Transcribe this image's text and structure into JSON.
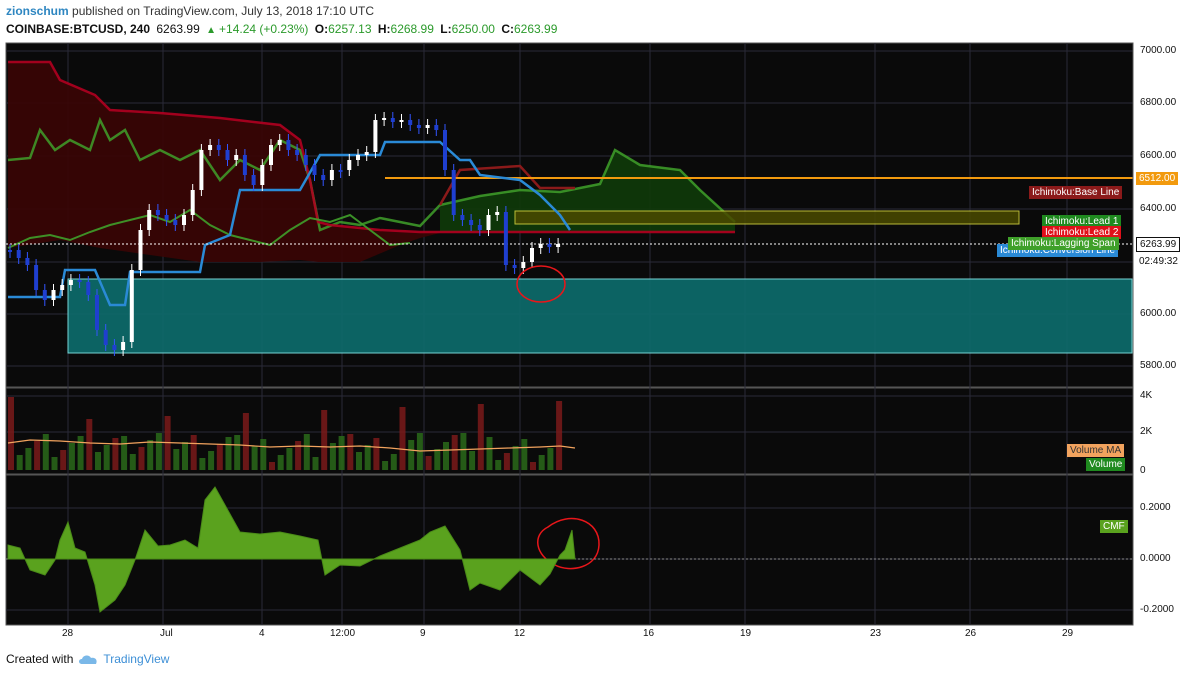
{
  "header": {
    "user": "zionschum",
    "published": "published on TradingView.com, July 13, 2018 17:10 UTC",
    "symbol": "COINBASE:BTCUSD, 240",
    "last": "6263.99",
    "change": "+14.24 (+0.23%)",
    "o_label": "O:",
    "o": "6257.13",
    "h_label": "H:",
    "h": "6268.99",
    "l_label": "L:",
    "l": "6250.00",
    "c_label": "C:",
    "c": "6263.99"
  },
  "price_axis": {
    "ticks": [
      "7000.00",
      "6800.00",
      "6600.00",
      "6400.00",
      "6000.00",
      "5800.00"
    ],
    "price_tag": "6263.99",
    "countdown": "02:49:32",
    "level_tag": "6512.00"
  },
  "indicator_labels": {
    "base_line": "Ichimoku:Base Line",
    "lead1": "Ichimoku:Lead 1",
    "lead2": "Ichimoku:Lead 2",
    "lagging": "Ichimoku:Lagging Span",
    "conversion": "Ichimoku:Conversion Line"
  },
  "volume_pane": {
    "ticks": [
      "4K",
      "2K",
      "0"
    ],
    "ma_label": "Volume MA",
    "vol_label": "Volume"
  },
  "cmf_pane": {
    "ticks": [
      "0.2000",
      "0.0000",
      "-0.2000"
    ],
    "label": "CMF"
  },
  "time_axis": {
    "labels": [
      "28",
      "Jul",
      "4",
      "12:00",
      "9",
      "12",
      "16",
      "19",
      "23",
      "26",
      "29"
    ]
  },
  "footer": {
    "created": "Created with",
    "brand": "TradingView"
  },
  "colors": {
    "up": "#ffffff",
    "down": "#1f3fd0",
    "cloud_red": "#b00020",
    "cloud_green": "#3a8a1a",
    "base_line": "#8b1a1a",
    "conversion": "#2a8ad6",
    "lagging": "#3fa02a",
    "box_teal": "#0d6b6b",
    "level": "#f29a0e",
    "cmf": "#5aa21e"
  }
}
